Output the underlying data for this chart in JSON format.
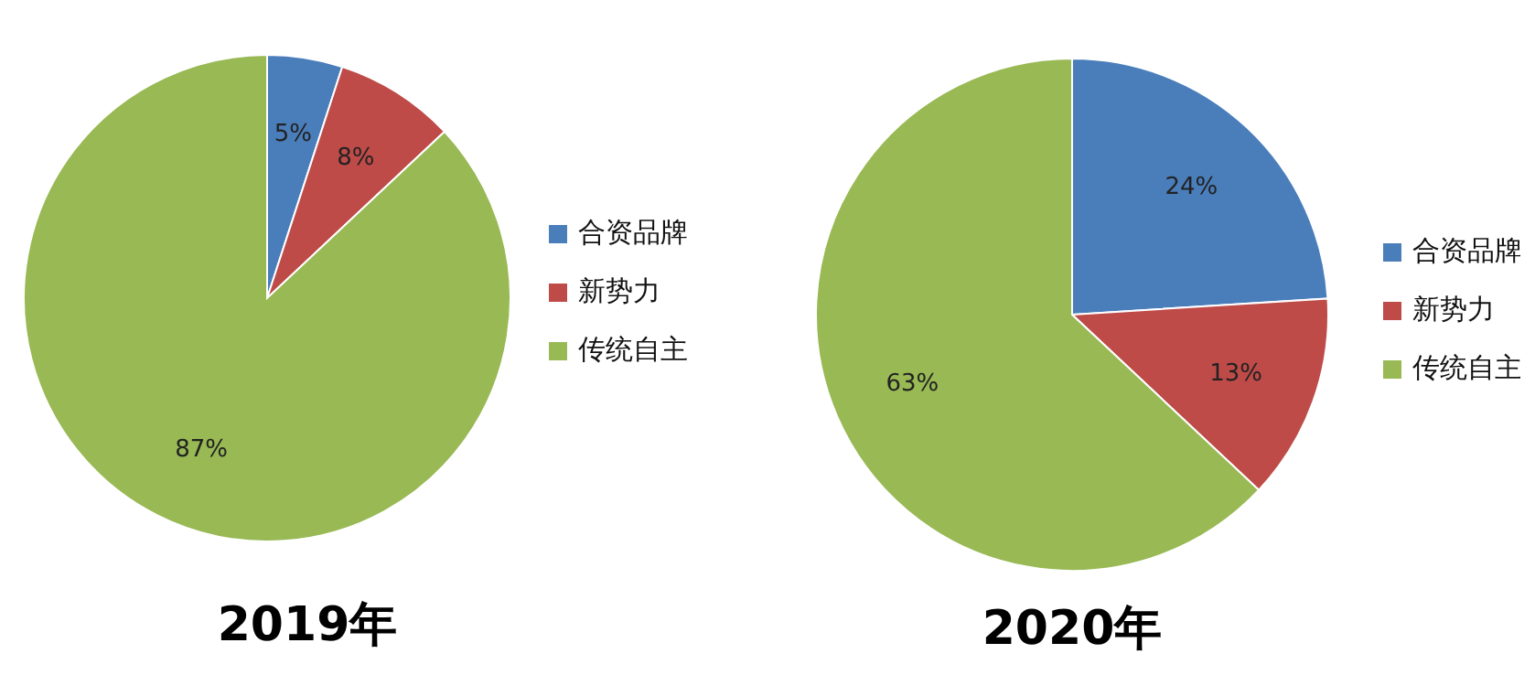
{
  "chart_data": [
    {
      "type": "pie",
      "title": "2019年",
      "categories": [
        "合资品牌",
        "新势力",
        "传统自主"
      ],
      "values": [
        5,
        8,
        87
      ],
      "value_labels": [
        "5%",
        "8%",
        "87%"
      ],
      "colors": [
        "#4a7ebb",
        "#be4b48",
        "#98b954"
      ],
      "legend": "right"
    },
    {
      "type": "pie",
      "title": "2020年",
      "categories": [
        "合资品牌",
        "新势力",
        "传统自主"
      ],
      "values": [
        24,
        13,
        63
      ],
      "value_labels": [
        "24%",
        "13%",
        "63%"
      ],
      "colors": [
        "#4a7ebb",
        "#be4b48",
        "#98b954"
      ],
      "legend": "right"
    }
  ]
}
